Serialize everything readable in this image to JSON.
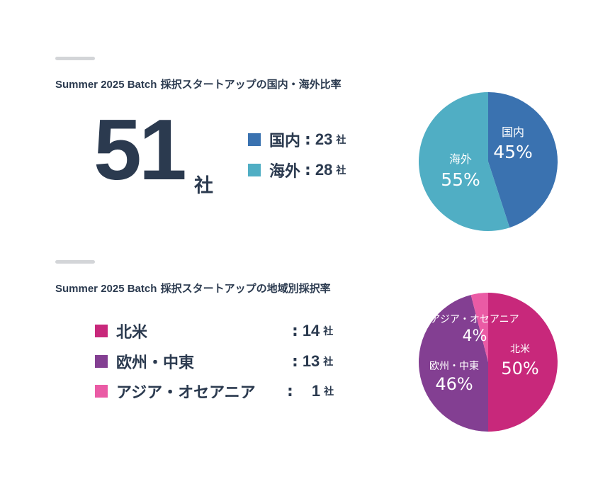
{
  "section1": {
    "heading_en": "Summer 2025 Batch",
    "heading_jp": "採択スタートアップの国内・海外比率",
    "total_value": "51",
    "total_unit": "社",
    "legend": [
      {
        "label": "国内",
        "colon": ":",
        "value": "23",
        "unit": "社",
        "color": "#3a72b0"
      },
      {
        "label": "海外",
        "colon": ":",
        "value": "28",
        "unit": "社",
        "color": "#50aec4"
      }
    ]
  },
  "section2": {
    "heading_en": "Summer 2025 Batch",
    "heading_jp": "採択スタートアップの地域別採択率",
    "legend": [
      {
        "label": "北米",
        "colon": ":",
        "value": "14",
        "unit": "社",
        "color": "#c8287b"
      },
      {
        "label": "欧州・中東",
        "colon": ":",
        "value": "13",
        "unit": "社",
        "color": "#833f92"
      },
      {
        "label": "アジア・オセアニア",
        "colon": ":",
        "value": "1",
        "unit": "社",
        "color": "#ea5ba5"
      }
    ]
  },
  "chart_data": [
    {
      "type": "pie",
      "title": "",
      "categories": [
        "国内",
        "海外"
      ],
      "values": [
        45,
        55
      ],
      "labels": [
        "45%",
        "55%"
      ],
      "colors": [
        "#3a72b0",
        "#50aec4"
      ]
    },
    {
      "type": "pie",
      "title": "",
      "categories": [
        "北米",
        "欧州・中東",
        "アジア・オセアニア"
      ],
      "values": [
        50,
        46,
        4
      ],
      "labels": [
        "50%",
        "46%",
        "4%"
      ],
      "colors": [
        "#c8287b",
        "#833f92",
        "#ea5ba5"
      ]
    }
  ]
}
